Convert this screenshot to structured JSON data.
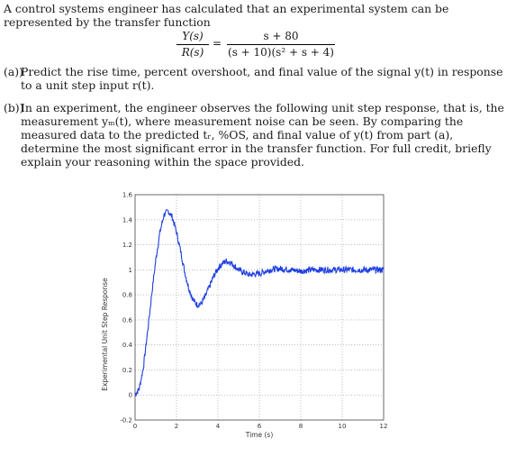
{
  "problem": {
    "intro": "A control systems engineer has calculated that an experimental system can be represented by the transfer function",
    "equation": {
      "lhs_num": "Y(s)",
      "lhs_den": "R(s)",
      "equals": "=",
      "rhs_num": "s + 80",
      "rhs_den": "(s + 10)(s² + s + 4)"
    },
    "part_a": {
      "label": "(a))",
      "text": "Predict the rise time, percent overshoot, and final value of the signal y(t) in response to a unit step input r(t)."
    },
    "part_b": {
      "label": "(b))",
      "text": "In an experiment, the engineer observes the following unit step response, that is, the measurement yₘ(t), where measurement noise can be seen. By comparing the measured data to the predicted tᵣ, %OS, and final value of y(t) from part (a), determine the most significant error in the transfer function. For full credit, briefly explain your reasoning within the space provided."
    }
  },
  "figure": {
    "xlabel": "Time (s)",
    "ylabel": "Experimental Unit Step Response",
    "line_color": "#1f3fe0",
    "grid": true
  },
  "chart_data": {
    "type": "line",
    "title": "",
    "xlabel": "Time (s)",
    "ylabel": "Experimental Unit Step Response",
    "xlim": [
      0,
      12
    ],
    "ylim": [
      -0.2,
      1.6
    ],
    "xticks": [
      "0",
      "2",
      "4",
      "6",
      "8",
      "10",
      "12"
    ],
    "yticks": [
      "-0.2",
      "0",
      "0.2",
      "0.4",
      "0.6",
      "0.8",
      "1",
      "1.2",
      "1.4",
      "1.6"
    ],
    "series": [
      {
        "x": [
          0,
          0.2,
          0.4,
          0.6,
          0.8,
          1.0,
          1.2,
          1.4,
          1.6,
          1.8,
          2.0,
          2.2,
          2.4,
          2.6,
          2.8,
          3.0,
          3.2,
          3.4,
          3.6,
          3.8,
          4.0,
          4.2,
          4.4,
          4.6,
          4.8,
          5.0,
          5.5,
          6.0,
          6.5,
          7.0,
          7.5,
          8.0,
          8.5,
          9.0,
          9.5,
          10.0,
          10.5,
          11.0,
          11.5,
          12.0
        ],
        "y": [
          0,
          0.05,
          0.22,
          0.5,
          0.8,
          1.08,
          1.3,
          1.44,
          1.47,
          1.42,
          1.3,
          1.15,
          0.98,
          0.85,
          0.76,
          0.72,
          0.73,
          0.79,
          0.87,
          0.95,
          1.01,
          1.05,
          1.07,
          1.06,
          1.03,
          1.0,
          0.96,
          0.97,
          1.0,
          1.01,
          1.0,
          0.99,
          1.0,
          1.0,
          1.0,
          1.0,
          1.0,
          1.0,
          1.0,
          1.0
        ]
      }
    ]
  }
}
